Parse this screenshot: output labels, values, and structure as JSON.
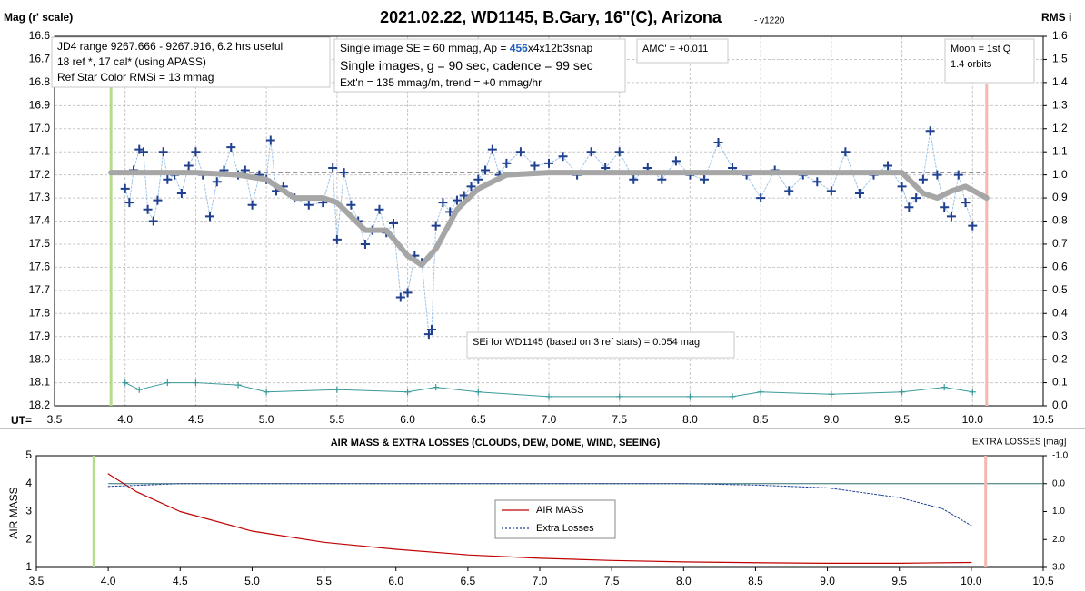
{
  "chart_data": [
    {
      "type": "scatter",
      "title": "2021.02.22, WD1145, B.Gary, 16\"(C), Arizona",
      "version": "- v1220",
      "y_label": "Mag (r' scale)",
      "y2_label": "RMS i",
      "x_label": "UT=",
      "xlim": [
        3.5,
        10.5
      ],
      "xticks": [
        3.5,
        {
          "value": 4,
          "label": "4.0"
        },
        4.5,
        {
          "value": 5,
          "label": "5.0"
        },
        5.5,
        {
          "value": 6,
          "label": "6.0"
        },
        6.5,
        {
          "value": 7,
          "label": "7.0"
        },
        7.5,
        {
          "value": 8,
          "label": "8.0"
        },
        8.5,
        {
          "value": 9,
          "label": "9.0"
        },
        9.5,
        {
          "value": 10,
          "label": "10.0"
        },
        10.5
      ],
      "ylim": [
        18.2,
        16.6
      ],
      "yticks": [
        16.6,
        16.7,
        16.8,
        16.9,
        {
          "value": 17,
          "label": "17.0"
        },
        17.1,
        17.2,
        17.3,
        17.4,
        17.5,
        17.6,
        17.7,
        17.8,
        17.9,
        {
          "value": 18,
          "label": "18.0"
        },
        18.1,
        18.2
      ],
      "y2lim": [
        0,
        1.6
      ],
      "y2ticks": [
        {
          "value": 0,
          "label": "0.0"
        },
        0.1,
        0.2,
        0.3,
        0.4,
        0.5,
        0.6,
        0.7,
        0.8,
        0.9,
        {
          "value": 1,
          "label": "1.0"
        },
        1.1,
        1.2,
        1.3,
        1.4,
        1.5,
        1.6
      ],
      "grid": true,
      "reference_line": 17.19,
      "vlines": [
        {
          "x": 3.9,
          "color": "#b4dc8c"
        },
        {
          "x": 10.1,
          "color": "#f4b8b0"
        }
      ],
      "series": [
        {
          "color": "#1f3f8f",
          "marker": "cross",
          "line": "dotted",
          "x": [
            4.0,
            4.03,
            4.06,
            4.1,
            4.13,
            4.16,
            4.2,
            4.23,
            4.27,
            4.3,
            4.35,
            4.4,
            4.45,
            4.5,
            4.55,
            4.6,
            4.65,
            4.7,
            4.75,
            4.8,
            4.85,
            4.9,
            4.95,
            5.0,
            5.03,
            5.07,
            5.12,
            5.2,
            5.3,
            5.4,
            5.47,
            5.5,
            5.55,
            5.6,
            5.65,
            5.7,
            5.75,
            5.8,
            5.85,
            5.9,
            5.95,
            6.0,
            6.05,
            6.1,
            6.15,
            6.17,
            6.2,
            6.25,
            6.3,
            6.35,
            6.4,
            6.45,
            6.5,
            6.55,
            6.6,
            6.65,
            6.7,
            6.8,
            6.9,
            7.0,
            7.1,
            7.2,
            7.3,
            7.4,
            7.5,
            7.6,
            7.7,
            7.8,
            7.9,
            8.0,
            8.1,
            8.2,
            8.3,
            8.4,
            8.5,
            8.6,
            8.7,
            8.8,
            8.9,
            9.0,
            9.1,
            9.2,
            9.3,
            9.4,
            9.5,
            9.55,
            9.6,
            9.65,
            9.7,
            9.75,
            9.8,
            9.85,
            9.9,
            9.95,
            10.0
          ],
          "values": [
            17.26,
            17.32,
            17.18,
            17.09,
            17.1,
            17.35,
            17.4,
            17.31,
            17.1,
            17.22,
            17.2,
            17.28,
            17.16,
            17.1,
            17.2,
            17.38,
            17.23,
            17.18,
            17.08,
            17.2,
            17.18,
            17.33,
            17.2,
            17.22,
            17.05,
            17.27,
            17.25,
            17.3,
            17.33,
            17.32,
            17.17,
            17.48,
            17.19,
            17.33,
            17.4,
            17.5,
            17.44,
            17.35,
            17.45,
            17.41,
            17.73,
            17.71,
            17.55,
            17.58,
            17.89,
            17.87,
            17.42,
            17.32,
            17.36,
            17.31,
            17.29,
            17.25,
            17.22,
            17.18,
            17.09,
            17.2,
            17.15,
            17.1,
            17.16,
            17.15,
            17.12,
            17.2,
            17.1,
            17.17,
            17.1,
            17.22,
            17.17,
            17.22,
            17.14,
            17.2,
            17.22,
            17.06,
            17.17,
            17.2,
            17.3,
            17.18,
            17.27,
            17.2,
            17.23,
            17.27,
            17.1,
            17.28,
            17.2,
            17.16,
            17.25,
            17.34,
            17.3,
            17.22,
            17.01,
            17.2,
            17.34,
            17.38,
            17.2,
            17.32,
            17.42
          ]
        },
        {
          "color": "#a6a6a6",
          "line": "thick",
          "x": [
            3.9,
            4.5,
            4.8,
            5.0,
            5.2,
            5.4,
            5.5,
            5.7,
            5.85,
            6.0,
            6.1,
            6.2,
            6.35,
            6.5,
            6.7,
            7.0,
            9.5,
            9.65,
            9.75,
            9.85,
            9.95,
            10.1
          ],
          "values": [
            17.19,
            17.19,
            17.2,
            17.22,
            17.3,
            17.3,
            17.32,
            17.44,
            17.44,
            17.55,
            17.59,
            17.52,
            17.35,
            17.26,
            17.2,
            17.19,
            17.19,
            17.28,
            17.3,
            17.27,
            17.25,
            17.3
          ]
        },
        {
          "color": "#3a9a9a",
          "marker": "cross",
          "line": "thin",
          "axis": "y2",
          "x": [
            4.0,
            4.1,
            4.3,
            4.5,
            4.8,
            5.0,
            5.5,
            6.0,
            6.2,
            6.5,
            7.0,
            7.5,
            8.0,
            8.3,
            8.5,
            9.0,
            9.5,
            9.8,
            10.0
          ],
          "values": [
            0.1,
            0.07,
            0.1,
            0.1,
            0.09,
            0.06,
            0.07,
            0.06,
            0.08,
            0.06,
            0.04,
            0.04,
            0.04,
            0.04,
            0.06,
            0.05,
            0.06,
            0.08,
            0.06
          ]
        }
      ],
      "annotations": [
        [
          "JD4 range 9267.666 - 9267.916, 6.2 hrs useful",
          "18 ref *, 17 cal* (using APASS)",
          "Ref Star Color RMSi = 13 mmag"
        ],
        [
          "Single image SE = 60 mmag, Ap = ",
          "456",
          "x4x12b3snap",
          "Single images, g = 90 sec, cadence = 99 sec",
          "Ext'n = 135 mmag/m, trend = +0 mmag/hr"
        ],
        [
          "AMC' = +0.011"
        ],
        [
          "Moon = 1st Q",
          "1.4 orbits"
        ],
        [
          "SEi for WD1145 (based on 3 ref stars) = 0.054 mag"
        ]
      ]
    },
    {
      "type": "line",
      "title": "AIR MASS & EXTRA LOSSES (CLOUDS, DEW, DOME, WIND, SEEING)",
      "y_label": "AIR MASS",
      "y2_label": "EXTRA LOSSES [mag]",
      "xlim": [
        3.5,
        10.5
      ],
      "xticks": [
        3.5,
        {
          "value": 4,
          "label": "4.0"
        },
        4.5,
        {
          "value": 5,
          "label": "5.0"
        },
        5.5,
        {
          "value": 6,
          "label": "6.0"
        },
        6.5,
        {
          "value": 7,
          "label": "7.0"
        },
        7.5,
        {
          "value": 8,
          "label": "8.0"
        },
        8.5,
        {
          "value": 9,
          "label": "9.0"
        },
        9.5,
        {
          "value": 10,
          "label": "10.0"
        },
        10.5
      ],
      "ylim": [
        1,
        5
      ],
      "yticks": [
        1,
        2,
        3,
        4,
        5
      ],
      "y2lim": [
        3,
        -1
      ],
      "y2ticks": [
        {
          "value": 3,
          "label": "3.0"
        },
        {
          "value": 2,
          "label": "2.0"
        },
        {
          "value": 1,
          "label": "1.0"
        },
        {
          "value": 0,
          "label": "0.0"
        },
        {
          "value": -1,
          "label": "-1.0"
        }
      ],
      "y2_reference_line": 0,
      "vlines": [
        {
          "x": 3.9,
          "color": "#b4dc8c"
        },
        {
          "x": 10.1,
          "color": "#f4b8b0"
        }
      ],
      "series": [
        {
          "name": "AIR MASS",
          "color": "#c00000",
          "line": "solid",
          "x": [
            4.0,
            4.2,
            4.5,
            5.0,
            5.5,
            6.0,
            6.5,
            7.0,
            7.5,
            8.0,
            8.5,
            9.0,
            9.5,
            10.0
          ],
          "values": [
            4.35,
            3.7,
            3.0,
            2.3,
            1.9,
            1.65,
            1.45,
            1.33,
            1.25,
            1.2,
            1.17,
            1.15,
            1.15,
            1.18
          ]
        },
        {
          "name": "Extra Losses",
          "color": "#1f3f8f",
          "line": "dotted",
          "axis": "y2",
          "x": [
            4.0,
            4.5,
            5.0,
            6.0,
            7.0,
            8.0,
            8.5,
            9.0,
            9.5,
            9.8,
            10.0
          ],
          "values": [
            0.1,
            0.0,
            0.0,
            0.0,
            0.0,
            0.0,
            0.05,
            0.15,
            0.5,
            0.9,
            1.5
          ]
        }
      ]
    }
  ]
}
